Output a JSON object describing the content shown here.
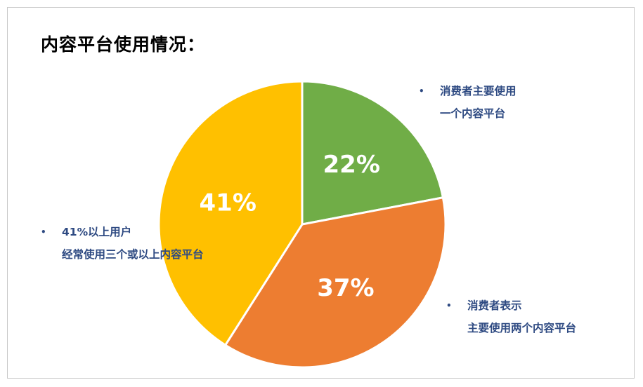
{
  "title": "内容平台使用情况：",
  "colors": {
    "background": "#ffffff",
    "border": "#c8c8c8",
    "title": "#000000",
    "annotation": "#2e4a82",
    "slice_label": "#ffffff"
  },
  "annotations": {
    "top_right": {
      "bullet": "•",
      "line1": "消费者主要使用",
      "line2": "一个内容平台"
    },
    "bottom_right": {
      "bullet": "•",
      "line1": "消费者表示",
      "line2": "主要使用两个内容平台"
    },
    "left": {
      "bullet": "•",
      "line1": "41%以上用户",
      "line2": "经常使用三个或以上内容平台"
    }
  },
  "chart_data": {
    "type": "pie",
    "title": "内容平台使用情况：",
    "start_angle_deg": 0,
    "direction": "clockwise",
    "slices": [
      {
        "label": "22%",
        "value": 22,
        "color": "#70ad47"
      },
      {
        "label": "37%",
        "value": 37,
        "color": "#ed7d31"
      },
      {
        "label": "41%",
        "value": 41,
        "color": "#ffc000"
      }
    ]
  }
}
